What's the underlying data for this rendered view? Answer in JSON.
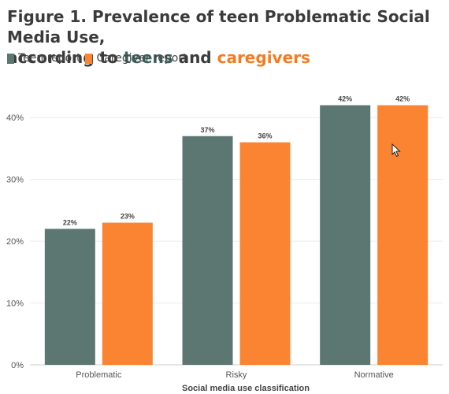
{
  "title": {
    "line1": "Figure 1. Prevalence of teen Problematic Social Media Use,",
    "line2_prefix": "according to ",
    "teens_word": "teens",
    "and_word": " and ",
    "caregivers_word": "caregivers"
  },
  "colors": {
    "teen": "#5c7772",
    "caregiver": "#fa8431",
    "grid": "#ececec",
    "axis_text": "#555555"
  },
  "chart_data": {
    "type": "bar",
    "categories": [
      "Problematic",
      "Risky",
      "Normative"
    ],
    "series": [
      {
        "name": "Teen report",
        "values": [
          22,
          37,
          42
        ],
        "labels": [
          "22%",
          "37%",
          "42%"
        ]
      },
      {
        "name": "Caregiver report",
        "values": [
          23,
          36,
          42
        ],
        "labels": [
          "23%",
          "36%",
          "42%"
        ]
      }
    ],
    "ylim": [
      0,
      45
    ],
    "yticks": [
      0,
      10,
      20,
      30,
      40
    ],
    "ytick_labels": [
      "0%",
      "10%",
      "20%",
      "30%",
      "40%"
    ],
    "xlabel": "Social media use classification",
    "ylabel": "",
    "grid": true,
    "legend_position": "top-left"
  }
}
